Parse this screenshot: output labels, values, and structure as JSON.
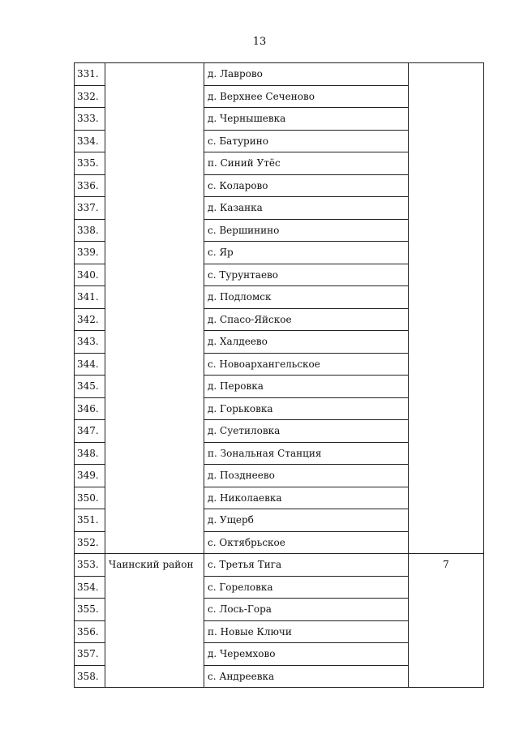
{
  "page_number": "13",
  "groups": [
    {
      "district": "",
      "count": "",
      "rows": [
        {
          "num": "331.",
          "name": "д. Лаврово"
        },
        {
          "num": "332.",
          "name": "д. Верхнее Сеченово"
        },
        {
          "num": "333.",
          "name": "д. Чернышевка"
        },
        {
          "num": "334.",
          "name": "с. Батурино"
        },
        {
          "num": "335.",
          "name": "п. Синий Утёс"
        },
        {
          "num": "336.",
          "name": "с. Коларово"
        },
        {
          "num": "337.",
          "name": "д. Казанка"
        },
        {
          "num": "338.",
          "name": "с. Вершинино"
        },
        {
          "num": "339.",
          "name": "с. Яр"
        },
        {
          "num": "340.",
          "name": "с. Турунтаево"
        },
        {
          "num": "341.",
          "name": "д. Подломск"
        },
        {
          "num": "342.",
          "name": "д. Спасо-Яйское"
        },
        {
          "num": "343.",
          "name": "д. Халдеево"
        },
        {
          "num": "344.",
          "name": "с. Новоархангельское"
        },
        {
          "num": "345.",
          "name": "д. Перовка"
        },
        {
          "num": "346.",
          "name": "д. Горьковка"
        },
        {
          "num": "347.",
          "name": "д. Суетиловка"
        },
        {
          "num": "348.",
          "name": "п. Зональная Станция"
        },
        {
          "num": "349.",
          "name": "д. Позднеево"
        },
        {
          "num": "350.",
          "name": "д. Николаевка"
        },
        {
          "num": "351.",
          "name": "д. Ущерб"
        },
        {
          "num": "352.",
          "name": "с. Октябрьское"
        }
      ]
    },
    {
      "district": "Чаинский район",
      "count": "7",
      "rows": [
        {
          "num": "353.",
          "name": "с. Третья Тига"
        },
        {
          "num": "354.",
          "name": "с. Гореловка"
        },
        {
          "num": "355.",
          "name": "с. Лось-Гора"
        },
        {
          "num": "356.",
          "name": "п. Новые Ключи"
        },
        {
          "num": "357.",
          "name": "д. Черемхово"
        },
        {
          "num": "358.",
          "name": "с. Андреевка"
        }
      ]
    }
  ]
}
